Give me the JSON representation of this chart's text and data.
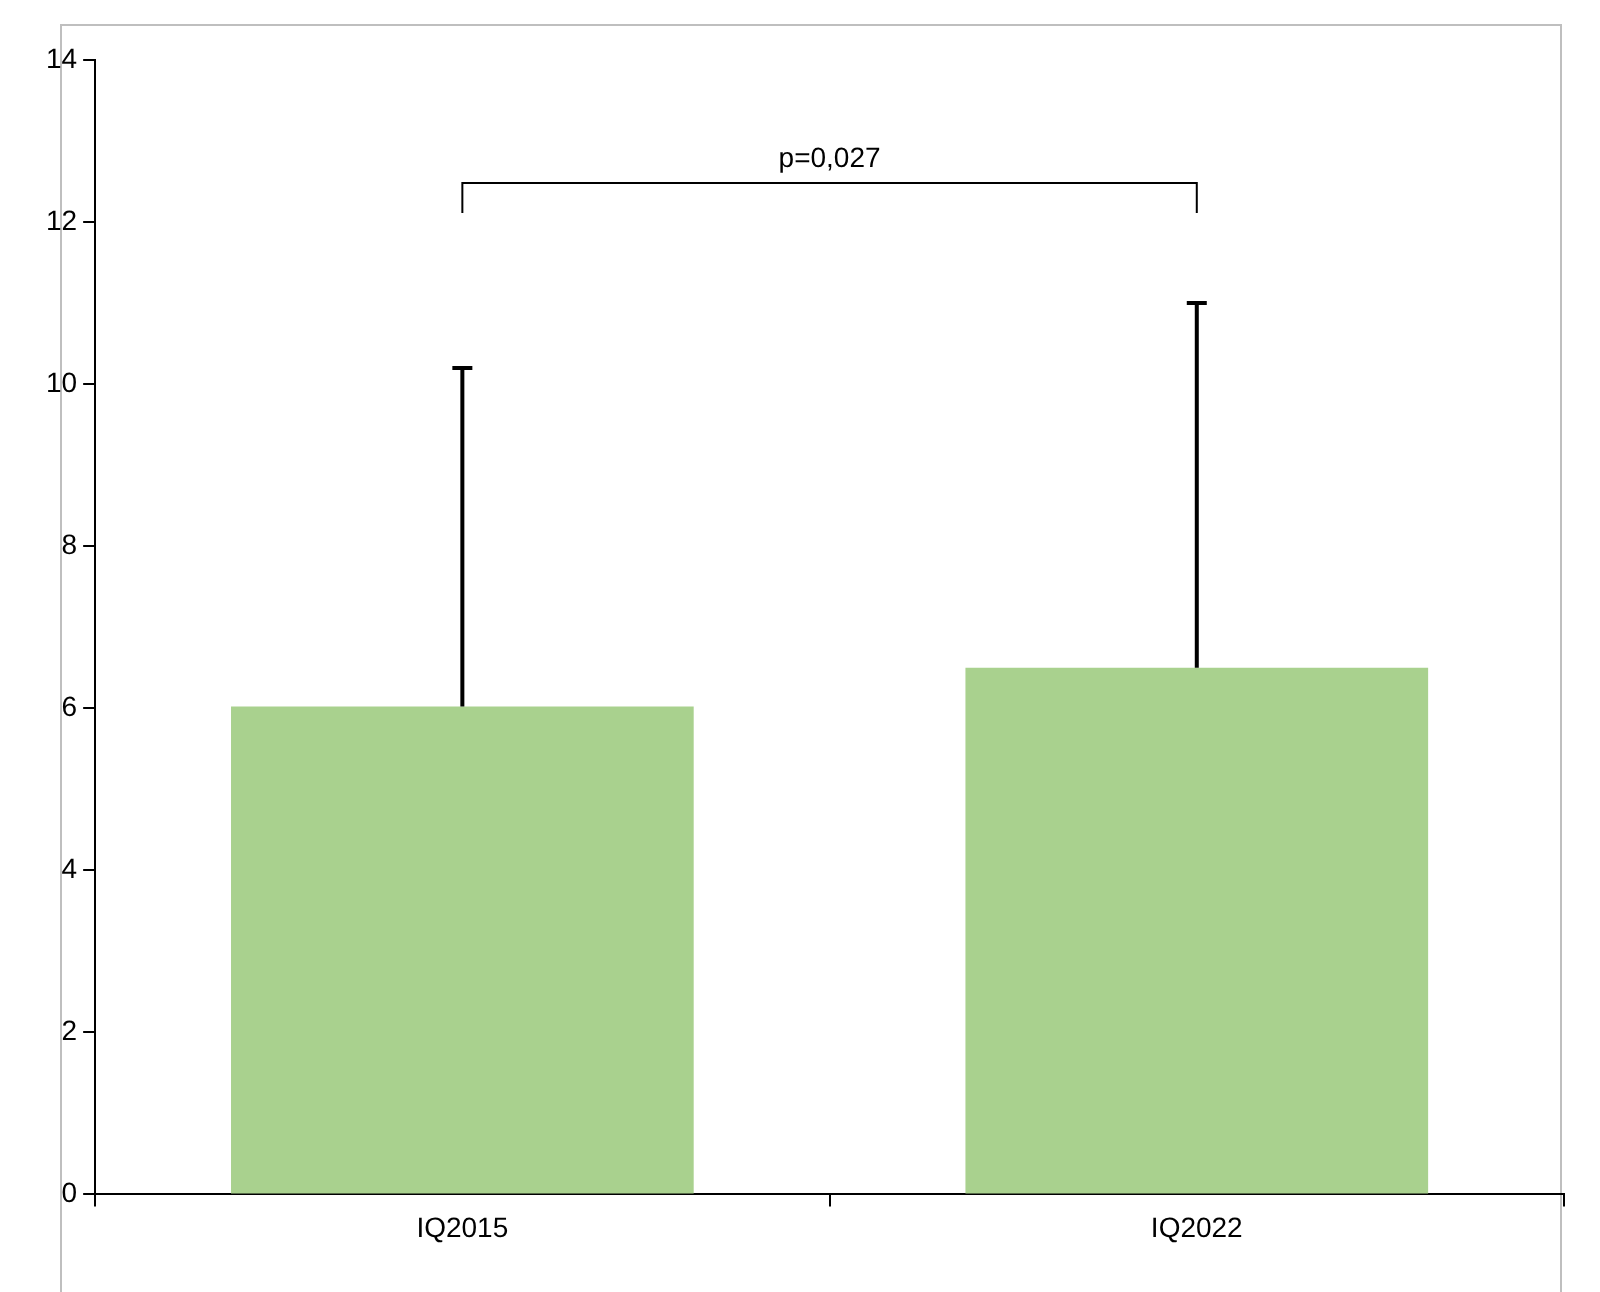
{
  "chart_data": {
    "type": "bar",
    "categories": [
      "IQ2015",
      "IQ2022"
    ],
    "values": [
      6.02,
      6.5
    ],
    "errors": [
      [
        6.02,
        10.2
      ],
      [
        6.5,
        11.0
      ]
    ],
    "color": "#a9d18e",
    "ylim": [
      0,
      14
    ],
    "yticks": [
      0,
      2,
      4,
      6,
      8,
      10,
      12,
      14
    ],
    "grid": false,
    "legend": false,
    "annotations": [
      "p=0,027"
    ]
  }
}
